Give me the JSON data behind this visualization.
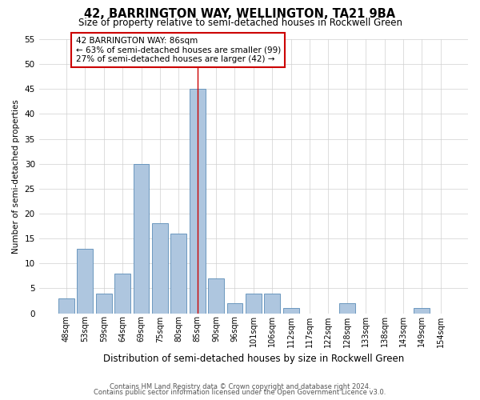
{
  "title1": "42, BARRINGTON WAY, WELLINGTON, TA21 9BA",
  "title2": "Size of property relative to semi-detached houses in Rockwell Green",
  "xlabel": "Distribution of semi-detached houses by size in Rockwell Green",
  "ylabel": "Number of semi-detached properties",
  "footnote1": "Contains HM Land Registry data © Crown copyright and database right 2024.",
  "footnote2": "Contains public sector information licensed under the Open Government Licence v3.0.",
  "bar_labels": [
    "48sqm",
    "53sqm",
    "59sqm",
    "64sqm",
    "69sqm",
    "75sqm",
    "80sqm",
    "85sqm",
    "90sqm",
    "96sqm",
    "101sqm",
    "106sqm",
    "112sqm",
    "117sqm",
    "122sqm",
    "128sqm",
    "133sqm",
    "138sqm",
    "143sqm",
    "149sqm",
    "154sqm"
  ],
  "bar_values": [
    3,
    13,
    4,
    8,
    30,
    18,
    16,
    45,
    7,
    2,
    4,
    4,
    1,
    0,
    0,
    2,
    0,
    0,
    0,
    1,
    0
  ],
  "bar_color": "#aec6df",
  "bar_edge_color": "#5b8db8",
  "highlight_index": 7,
  "highlight_line_color": "#cc0000",
  "annotation_line1": "42 BARRINGTON WAY: 86sqm",
  "annotation_line2": "← 63% of semi-detached houses are smaller (99)",
  "annotation_line3": "27% of semi-detached houses are larger (42) →",
  "annotation_box_color": "#ffffff",
  "annotation_box_edge": "#cc0000",
  "ylim": [
    0,
    55
  ],
  "yticks": [
    0,
    5,
    10,
    15,
    20,
    25,
    30,
    35,
    40,
    45,
    50,
    55
  ],
  "bg_color": "#ffffff",
  "grid_color": "#d0d0d0"
}
